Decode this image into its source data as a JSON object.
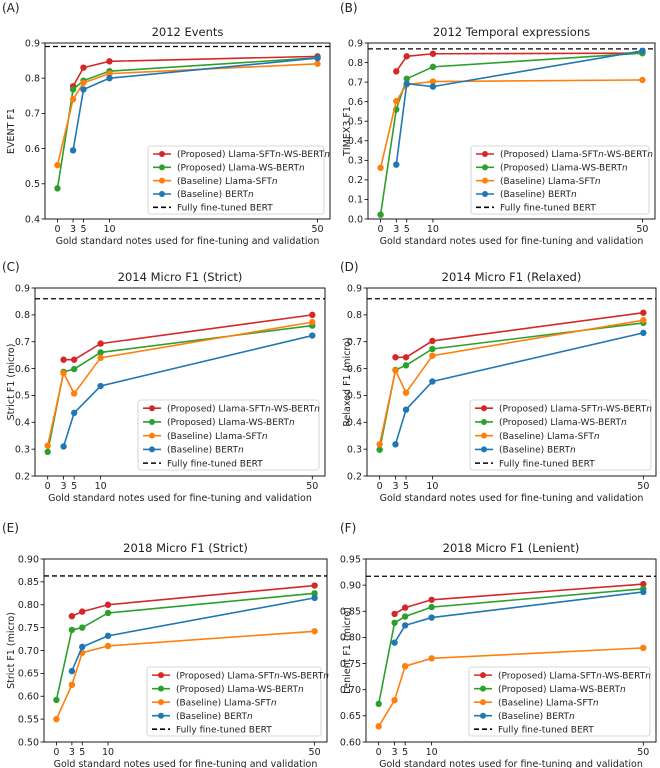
{
  "x_values": [
    0,
    3,
    5,
    10,
    50
  ],
  "x_ticks": [
    0,
    3,
    5,
    10,
    50
  ],
  "xlabel": "Gold standard notes used for fine-tuning and validation",
  "series_meta": [
    {
      "name": "(Proposed) Llama-SFTn-WS-BERTn",
      "label_parts": [
        "(Proposed) Llama-SFT",
        "n",
        "-WS-BERT",
        "n"
      ],
      "color": "#d62728"
    },
    {
      "name": "(Proposed) Llama-WS-BERTn",
      "label_parts": [
        "(Proposed) Llama-WS-BERT",
        "n"
      ],
      "color": "#2ca02c"
    },
    {
      "name": "(Baseline) Llama-SFTn",
      "label_parts": [
        "(Baseline) Llama-SFT",
        "n"
      ],
      "color": "#ff7f0e"
    },
    {
      "name": "(Baseline) BERTn",
      "label_parts": [
        "(Baseline) BERT",
        "n"
      ],
      "color": "#1f77b4"
    }
  ],
  "reference_label": "Fully fine-tuned BERT",
  "chart_data": [
    {
      "panel": "(A)",
      "type": "line",
      "title": "2012 Events",
      "ylabel": "EVENT F1",
      "ylim": [
        0.4,
        0.9
      ],
      "yticks": [
        "0.4",
        "0.5",
        "0.6",
        "0.7",
        "0.8",
        "0.9"
      ],
      "reference": 0.89,
      "series": [
        {
          "name": "(Proposed) Llama-SFTn-WS-BERTn",
          "values": [
            null,
            0.777,
            0.83,
            0.848,
            0.862
          ]
        },
        {
          "name": "(Proposed) Llama-WS-BERTn",
          "values": [
            0.487,
            0.768,
            0.793,
            0.82,
            0.858
          ]
        },
        {
          "name": "(Baseline) Llama-SFTn",
          "values": [
            0.553,
            0.74,
            0.787,
            0.813,
            0.841
          ]
        },
        {
          "name": "(Baseline) BERTn",
          "values": [
            null,
            0.595,
            0.768,
            0.8,
            0.857
          ]
        }
      ]
    },
    {
      "panel": "(B)",
      "type": "line",
      "title": "2012 Temporal expressions",
      "ylabel": "TIMEX3 F1",
      "ylim": [
        0.0,
        0.9
      ],
      "yticks": [
        "0.0",
        "0.1",
        "0.2",
        "0.3",
        "0.4",
        "0.5",
        "0.6",
        "0.7",
        "0.8",
        "0.9"
      ],
      "reference": 0.87,
      "series": [
        {
          "name": "(Proposed) Llama-SFTn-WS-BERTn",
          "values": [
            null,
            0.755,
            0.832,
            0.845,
            0.848
          ]
        },
        {
          "name": "(Proposed) Llama-WS-BERTn",
          "values": [
            0.022,
            0.56,
            0.717,
            0.778,
            0.848
          ]
        },
        {
          "name": "(Baseline) Llama-SFTn",
          "values": [
            0.262,
            0.603,
            0.688,
            0.703,
            0.711
          ]
        },
        {
          "name": "(Baseline) BERTn",
          "values": [
            null,
            0.278,
            0.692,
            0.677,
            0.86
          ]
        }
      ]
    },
    {
      "panel": "(C)",
      "type": "line",
      "title": "2014 Micro F1 (Strict)",
      "ylabel": "Strict F1 (micro)",
      "ylim": [
        0.2,
        0.9
      ],
      "yticks": [
        "0.2",
        "0.3",
        "0.4",
        "0.5",
        "0.6",
        "0.7",
        "0.8",
        "0.9"
      ],
      "reference": 0.86,
      "series": [
        {
          "name": "(Proposed) Llama-SFTn-WS-BERTn",
          "values": [
            null,
            0.633,
            0.633,
            0.693,
            0.8
          ]
        },
        {
          "name": "(Proposed) Llama-WS-BERTn",
          "values": [
            0.29,
            0.588,
            0.598,
            0.66,
            0.76
          ]
        },
        {
          "name": "(Baseline) Llama-SFTn",
          "values": [
            0.313,
            0.583,
            0.507,
            0.64,
            0.773
          ]
        },
        {
          "name": "(Baseline) BERTn",
          "values": [
            null,
            0.31,
            0.435,
            0.535,
            0.723
          ]
        }
      ]
    },
    {
      "panel": "(D)",
      "type": "line",
      "title": "2014 Micro F1 (Relaxed)",
      "ylabel": "Relaxed F1 (micro)",
      "ylim": [
        0.2,
        0.9
      ],
      "yticks": [
        "0.2",
        "0.3",
        "0.4",
        "0.5",
        "0.6",
        "0.7",
        "0.8",
        "0.9"
      ],
      "reference": 0.86,
      "series": [
        {
          "name": "(Proposed) Llama-SFTn-WS-BERTn",
          "values": [
            null,
            0.642,
            0.642,
            0.703,
            0.808
          ]
        },
        {
          "name": "(Proposed) Llama-WS-BERTn",
          "values": [
            0.298,
            0.595,
            0.612,
            0.673,
            0.77
          ]
        },
        {
          "name": "(Baseline) Llama-SFTn",
          "values": [
            0.318,
            0.593,
            0.51,
            0.648,
            0.78
          ]
        },
        {
          "name": "(Baseline) BERTn",
          "values": [
            null,
            0.318,
            0.447,
            0.552,
            0.733
          ]
        }
      ]
    },
    {
      "panel": "(E)",
      "type": "line",
      "title": "2018 Micro F1 (Strict)",
      "ylabel": "Strict F1 (micro)",
      "ylim": [
        0.5,
        0.9
      ],
      "yticks": [
        "0.50",
        "0.55",
        "0.60",
        "0.65",
        "0.70",
        "0.75",
        "0.80",
        "0.85",
        "0.90"
      ],
      "reference": 0.863,
      "series": [
        {
          "name": "(Proposed) Llama-SFTn-WS-BERTn",
          "values": [
            null,
            0.775,
            0.785,
            0.8,
            0.842
          ]
        },
        {
          "name": "(Proposed) Llama-WS-BERTn",
          "values": [
            0.592,
            0.745,
            0.75,
            0.782,
            0.825
          ]
        },
        {
          "name": "(Baseline) Llama-SFTn",
          "values": [
            0.55,
            0.625,
            0.695,
            0.71,
            0.742
          ]
        },
        {
          "name": "(Baseline) BERTn",
          "values": [
            null,
            0.655,
            0.708,
            0.732,
            0.815
          ]
        }
      ]
    },
    {
      "panel": "(F)",
      "type": "line",
      "title": "2018 Micro F1 (Lenient)",
      "ylabel": "Lenient F1 (micro)",
      "ylim": [
        0.6,
        0.95
      ],
      "yticks": [
        "0.60",
        "0.65",
        "0.70",
        "0.75",
        "0.80",
        "0.85",
        "0.90",
        "0.95"
      ],
      "reference": 0.917,
      "series": [
        {
          "name": "(Proposed) Llama-SFTn-WS-BERTn",
          "values": [
            null,
            0.845,
            0.857,
            0.872,
            0.902
          ]
        },
        {
          "name": "(Proposed) Llama-WS-BERTn",
          "values": [
            0.673,
            0.828,
            0.84,
            0.858,
            0.893
          ]
        },
        {
          "name": "(Baseline) Llama-SFTn",
          "values": [
            0.63,
            0.68,
            0.745,
            0.76,
            0.78
          ]
        },
        {
          "name": "(Baseline) BERTn",
          "values": [
            null,
            0.79,
            0.823,
            0.838,
            0.887
          ]
        }
      ]
    }
  ]
}
